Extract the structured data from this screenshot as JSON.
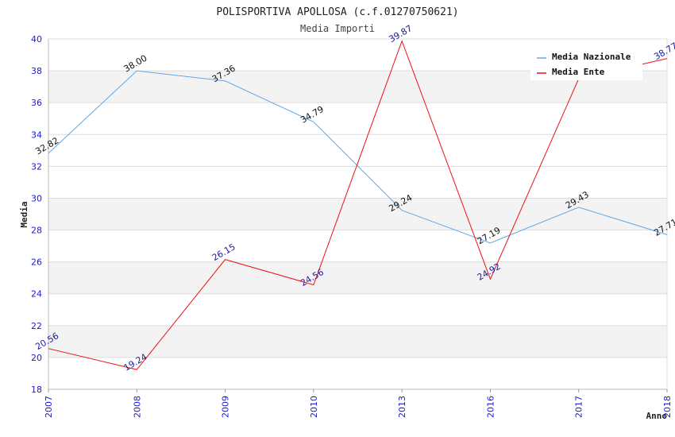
{
  "chart_data": {
    "type": "line",
    "title": "POLISPORTIVA APOLLOSA (c.f.01270750621)",
    "subtitle": "Media Importi",
    "xlabel": "Anno",
    "ylabel": "Media",
    "categories": [
      "2007",
      "2008",
      "2009",
      "2010",
      "2013",
      "2016",
      "2017",
      "2018"
    ],
    "ylim": [
      18,
      40
    ],
    "yticks": [
      "18",
      "20",
      "22",
      "24",
      "26",
      "28",
      "30",
      "32",
      "34",
      "36",
      "38",
      "40"
    ],
    "grid": true,
    "legend_position": "top-right",
    "series": [
      {
        "name": "Media Nazionale",
        "color": "#5fa8e8",
        "label_color": "#111111",
        "values": [
          32.82,
          38.0,
          37.36,
          34.79,
          29.24,
          27.19,
          29.43,
          27.71
        ],
        "labels": [
          "32.82",
          "38.00",
          "37.36",
          "34.79",
          "29.24",
          "27.19",
          "29.43",
          "27.71"
        ]
      },
      {
        "name": "Media Ente",
        "color": "#ee1111",
        "label_color": "#1a1a99",
        "values": [
          20.56,
          19.24,
          26.15,
          24.56,
          39.87,
          24.92,
          37.5,
          38.77
        ],
        "labels": [
          "20.56",
          "19.24",
          "26.15",
          "24.56",
          "39.87",
          "24.92",
          "",
          "38.77"
        ]
      }
    ]
  }
}
